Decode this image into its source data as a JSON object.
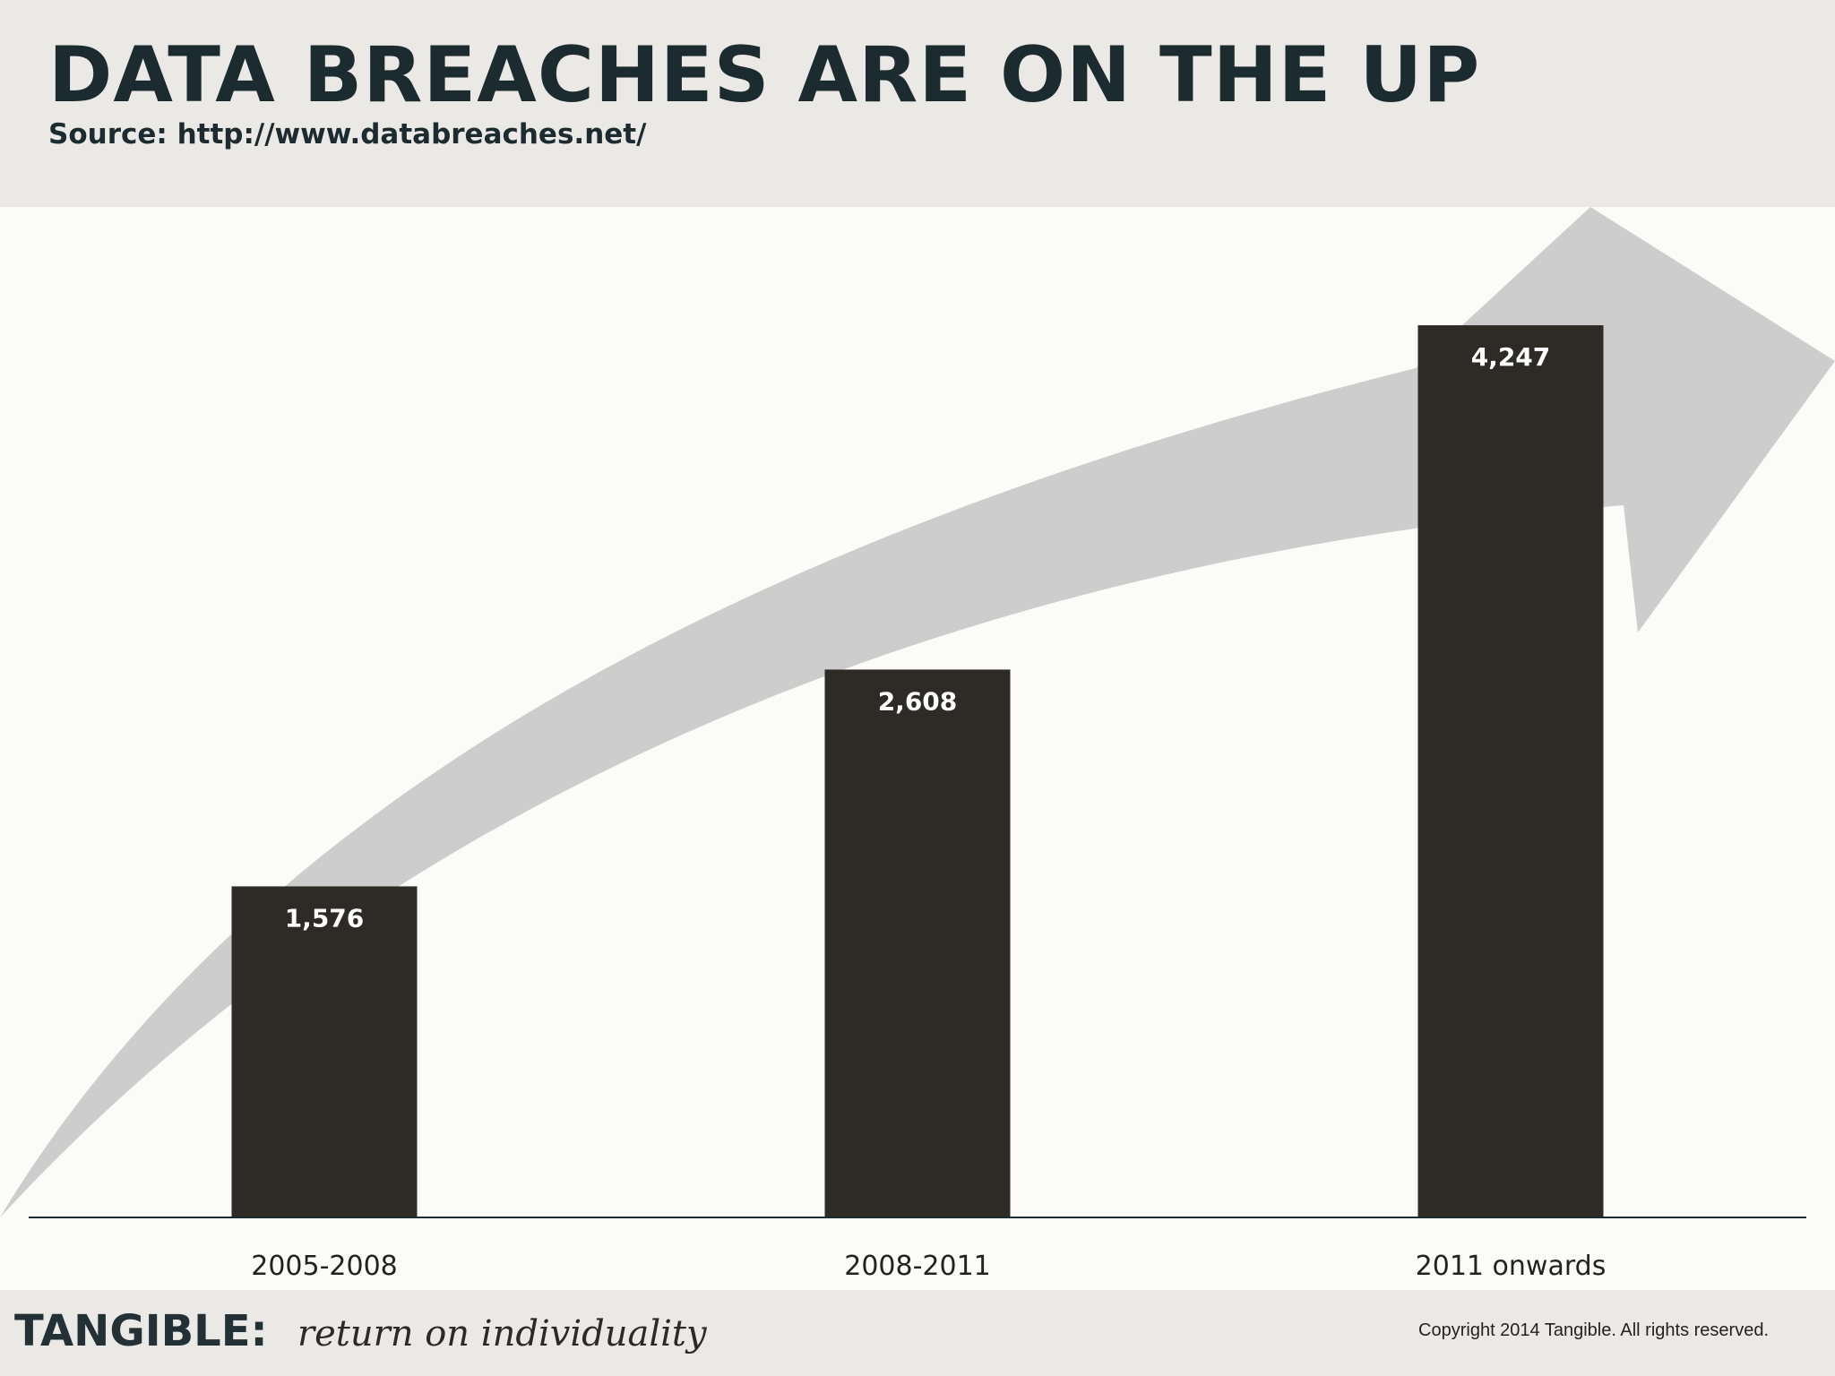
{
  "header": {
    "title": "DATA BREACHES ARE ON THE UP",
    "source": "Source: http://www.databreaches.net/"
  },
  "chart_data": {
    "type": "bar",
    "categories": [
      "2005-2008",
      "2008-2011",
      "2011 onwards"
    ],
    "values": [
      1576,
      2608,
      4247
    ],
    "value_labels": [
      "1,576",
      "2,608",
      "4,247"
    ],
    "title": "DATA BREACHES ARE ON THE UP",
    "xlabel": "",
    "ylabel": "",
    "ylim": [
      0,
      5500
    ],
    "grid": false,
    "legend": "none",
    "decoration": "large grey upward-curving arrow behind bars",
    "colors": {
      "bar": "#2e2a26",
      "arrow": "#cdcdcd",
      "axis": "#1c2b2f",
      "label": "#ffffff"
    }
  },
  "footer": {
    "brand": "TANGIBLE:",
    "tagline": "return on individuality",
    "copyright": "Copyright 2014 Tangible. All rights reserved."
  }
}
